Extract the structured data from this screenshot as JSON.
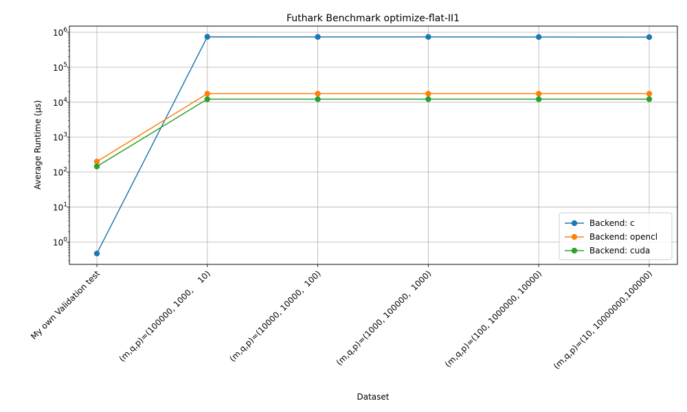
{
  "chart_data": {
    "type": "line",
    "title": "Futhark Benchmark optimize-flat-II1",
    "xlabel": "Dataset",
    "ylabel": "Average Runtime (μs)",
    "yscale": "log",
    "ylim": [
      0.23,
      1500000
    ],
    "grid": true,
    "legend_position": "bottom-right",
    "categories": [
      "My own Validation test",
      "(m,q,p)=(100000, 1000,    10)",
      "(m,q,p)=(10000, 10000,  100)",
      "(m,q,p)=(1000, 100000,  1000)",
      "(m,q,p)=(100, 1000000, 10000)",
      "(m,q,p)=(10, 10000000,100000)"
    ],
    "yticks": [
      {
        "value": 1,
        "mant": "10",
        "exp": "0"
      },
      {
        "value": 10,
        "mant": "10",
        "exp": "1"
      },
      {
        "value": 100,
        "mant": "10",
        "exp": "2"
      },
      {
        "value": 1000,
        "mant": "10",
        "exp": "3"
      },
      {
        "value": 10000,
        "mant": "10",
        "exp": "4"
      },
      {
        "value": 100000,
        "mant": "10",
        "exp": "5"
      },
      {
        "value": 1000000,
        "mant": "10",
        "exp": "6"
      }
    ],
    "series": [
      {
        "name": "Backend: c",
        "color": "#1f77b4",
        "values": [
          0.47,
          740000,
          735000,
          735000,
          732000,
          725000
        ]
      },
      {
        "name": "Backend: opencl",
        "color": "#ff7f0e",
        "values": [
          200,
          17500,
          17500,
          17500,
          17500,
          17500
        ]
      },
      {
        "name": "Backend: cuda",
        "color": "#2ca02c",
        "values": [
          145,
          12200,
          12200,
          12200,
          12200,
          12200
        ]
      }
    ]
  }
}
